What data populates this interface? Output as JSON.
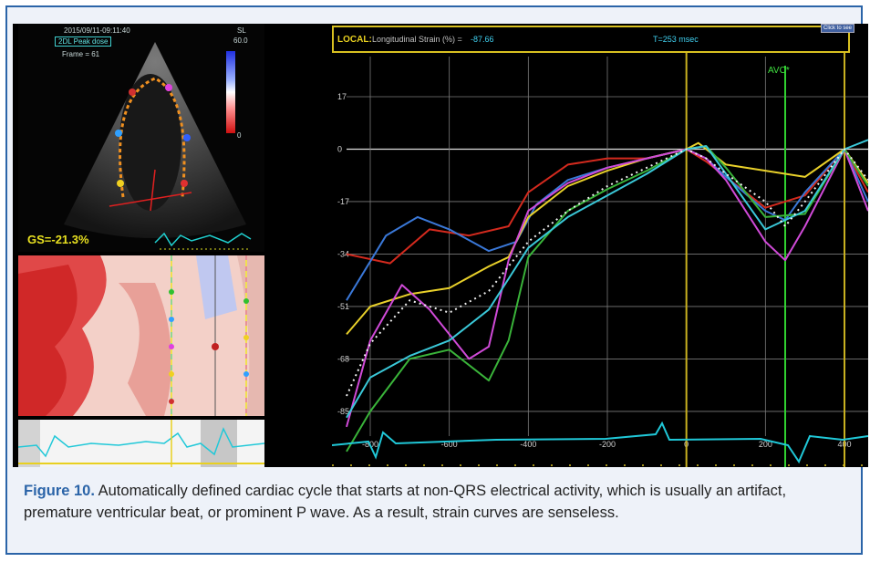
{
  "figure": {
    "echo": {
      "timestamp": "2015/09/11-09:11:40",
      "mode": "2DL Peak dose",
      "frame": "Frame = 61",
      "scale_top": "SL",
      "scale_val": "60.0",
      "scale_zero": "0",
      "gs": "GS=-21.3%"
    },
    "strain_chart": {
      "header_local": "LOCAL:",
      "header_label": "Longitudinal Strain (%) =",
      "header_value": "-87.66",
      "header_time": "T=253 msec",
      "corner_button": "Click to see",
      "avc_label": "AVC*"
    }
  },
  "chart_data": {
    "type": "line",
    "ylabel": "Longitudinal Strain (%)",
    "yticks": [
      17,
      0,
      -17,
      -34,
      -51,
      -68,
      -85
    ],
    "xticks": [
      -800,
      -600,
      -400,
      -200,
      0,
      200,
      400
    ],
    "ylim": [
      -93,
      30
    ],
    "xlim": [
      -860,
      460
    ],
    "avc_time": 250,
    "markers": [
      0,
      400
    ],
    "series": [
      {
        "color": "#d42a1e",
        "x": [
          -860,
          -750,
          -650,
          -550,
          -450,
          -400,
          -300,
          -200,
          -100,
          0,
          50,
          100,
          200,
          300,
          400,
          460
        ],
        "y": [
          -34,
          -37,
          -26,
          -28,
          -25,
          -14,
          -5,
          -3,
          -3,
          0,
          -4,
          -9,
          -19,
          -15,
          0,
          -14
        ]
      },
      {
        "color": "#3a78d8",
        "x": [
          -860,
          -760,
          -680,
          -600,
          -500,
          -430,
          -380,
          -300,
          -200,
          -100,
          0,
          50,
          100,
          200,
          250,
          300,
          400,
          460
        ],
        "y": [
          -49,
          -28,
          -22,
          -26,
          -33,
          -30,
          -18,
          -10,
          -6,
          -3,
          0,
          -3,
          -9,
          -20,
          -23,
          -14,
          0,
          -17
        ]
      },
      {
        "color": "#e8d02a",
        "x": [
          -860,
          -800,
          -700,
          -600,
          -500,
          -450,
          -400,
          -300,
          -200,
          -100,
          0,
          30,
          100,
          200,
          300,
          400,
          460
        ],
        "y": [
          -60,
          -51,
          -47,
          -45,
          -38,
          -35,
          -22,
          -12,
          -7,
          -3,
          0,
          2,
          -5,
          -7,
          -9,
          0,
          -11
        ]
      },
      {
        "color": "#d04ad8",
        "x": [
          -860,
          -800,
          -720,
          -650,
          -550,
          -500,
          -450,
          -400,
          -300,
          -200,
          -100,
          0,
          50,
          100,
          200,
          250,
          300,
          400,
          460
        ],
        "y": [
          -90,
          -62,
          -44,
          -52,
          -68,
          -64,
          -36,
          -20,
          -11,
          -6,
          -3,
          0,
          -3,
          -10,
          -30,
          -36,
          -25,
          0,
          -20
        ]
      },
      {
        "color": "#3ab43a",
        "x": [
          -860,
          -800,
          -700,
          -600,
          -500,
          -450,
          -400,
          -300,
          -200,
          -100,
          0,
          50,
          100,
          200,
          300,
          400,
          460
        ],
        "y": [
          -98,
          -85,
          -68,
          -65,
          -75,
          -62,
          -35,
          -20,
          -13,
          -7,
          0,
          1,
          -6,
          -22,
          -21,
          0,
          -12
        ]
      },
      {
        "color": "#3ac8d8",
        "x": [
          -860,
          -800,
          -700,
          -600,
          -500,
          -450,
          -400,
          -300,
          -200,
          -100,
          0,
          50,
          100,
          200,
          300,
          400,
          460
        ],
        "y": [
          -87,
          -74,
          -67,
          -62,
          -52,
          -42,
          -32,
          -22,
          -15,
          -8,
          0,
          1,
          -8,
          -26,
          -20,
          0,
          3
        ]
      },
      {
        "color": "#f0f0f0",
        "dashed": true,
        "x": [
          -860,
          -800,
          -700,
          -600,
          -500,
          -400,
          -300,
          -200,
          -100,
          0,
          50,
          100,
          200,
          250,
          300,
          400,
          460
        ],
        "y": [
          -80,
          -63,
          -49,
          -53,
          -46,
          -30,
          -20,
          -12,
          -6,
          0,
          -3,
          -8,
          -17,
          -25,
          -17,
          0,
          -10
        ]
      }
    ]
  },
  "caption": {
    "label": "Figure 10.",
    "text": " Automatically defined cardiac cycle that starts at non-QRS electrical activity, which is usually an artifact, premature ventricular beat, or prominent P wave. As a result, strain curves are senseless."
  }
}
